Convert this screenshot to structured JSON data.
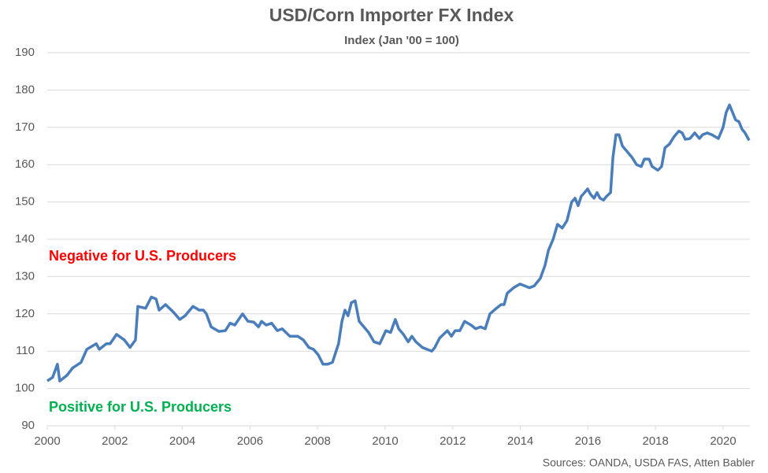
{
  "chart_data": {
    "type": "line",
    "title": "USD/Corn Importer FX Index",
    "subtitle": "Index (Jan '00 = 100)",
    "annotations": [
      {
        "text": "Negative for U.S. Producers",
        "color": "#ff0000"
      },
      {
        "text": "Positive for U.S. Producers",
        "color": "#00b050"
      }
    ],
    "source": "Sources: OANDA, USDA FAS, Atten Babler",
    "xlim": [
      2000,
      2020.8
    ],
    "xticks": [
      2000,
      2002,
      2004,
      2006,
      2008,
      2010,
      2012,
      2014,
      2016,
      2018,
      2020
    ],
    "ylim": [
      90,
      190
    ],
    "yticks": [
      90,
      100,
      110,
      120,
      130,
      140,
      150,
      160,
      170,
      180,
      190
    ],
    "grid": true,
    "x": [
      2000.0,
      2000.16,
      2000.3,
      2000.37,
      2000.58,
      2000.75,
      2001.0,
      2001.17,
      2001.45,
      2001.54,
      2001.75,
      2001.86,
      2002.05,
      2002.28,
      2002.45,
      2002.61,
      2002.68,
      2002.91,
      2003.08,
      2003.22,
      2003.31,
      2003.5,
      2003.73,
      2003.92,
      2004.08,
      2004.31,
      2004.5,
      2004.62,
      2004.71,
      2004.85,
      2005.08,
      2005.27,
      2005.41,
      2005.55,
      2005.78,
      2005.94,
      2006.11,
      2006.25,
      2006.34,
      2006.48,
      2006.64,
      2006.81,
      2006.95,
      2007.18,
      2007.41,
      2007.58,
      2007.74,
      2007.88,
      2008.02,
      2008.16,
      2008.3,
      2008.44,
      2008.62,
      2008.72,
      2008.81,
      2008.9,
      2009.0,
      2009.11,
      2009.23,
      2009.37,
      2009.51,
      2009.67,
      2009.84,
      2010.02,
      2010.16,
      2010.3,
      2010.4,
      2010.54,
      2010.68,
      2010.79,
      2010.91,
      2011.1,
      2011.24,
      2011.38,
      2011.47,
      2011.61,
      2011.84,
      2011.96,
      2012.07,
      2012.21,
      2012.35,
      2012.54,
      2012.68,
      2012.82,
      2012.96,
      2013.1,
      2013.29,
      2013.43,
      2013.52,
      2013.61,
      2013.8,
      2013.99,
      2014.13,
      2014.27,
      2014.41,
      2014.59,
      2014.73,
      2014.83,
      2014.97,
      2015.1,
      2015.24,
      2015.38,
      2015.52,
      2015.62,
      2015.71,
      2015.8,
      2015.9,
      2015.99,
      2016.08,
      2016.18,
      2016.27,
      2016.36,
      2016.46,
      2016.55,
      2016.67,
      2016.74,
      2016.83,
      2016.92,
      2017.02,
      2017.16,
      2017.3,
      2017.44,
      2017.58,
      2017.67,
      2017.81,
      2017.9,
      2018.07,
      2018.18,
      2018.28,
      2018.41,
      2018.55,
      2018.69,
      2018.79,
      2018.88,
      2019.02,
      2019.16,
      2019.3,
      2019.39,
      2019.53,
      2019.67,
      2019.86,
      2020.0,
      2020.09,
      2020.19,
      2020.28,
      2020.37,
      2020.47,
      2020.56,
      2020.65,
      2020.77
    ],
    "series": [
      {
        "name": "USD/Corn Importer FX Index",
        "color": "#4a7ebb",
        "values": [
          102,
          103,
          106.5,
          102,
          103.5,
          105.5,
          107,
          110.5,
          112,
          110.5,
          112,
          112,
          114.5,
          113,
          111,
          113,
          122,
          121.5,
          124.5,
          124,
          121,
          122.5,
          120.5,
          118.5,
          119.5,
          122,
          121,
          121,
          120,
          116.5,
          115.3,
          115.5,
          117.5,
          117,
          120,
          118,
          117.8,
          116.5,
          118,
          117,
          117.5,
          115.5,
          116,
          114,
          114,
          113,
          111,
          110.5,
          109,
          106.5,
          106.5,
          107,
          112,
          118,
          121,
          119.5,
          123,
          123.5,
          118,
          116.5,
          115,
          112.5,
          112,
          115.5,
          115,
          118.5,
          116,
          114.5,
          112.5,
          114,
          112.5,
          111,
          110.5,
          110,
          111,
          113.5,
          115.5,
          114,
          115.5,
          115.5,
          118,
          117,
          116,
          116.5,
          116,
          120,
          121.5,
          122.5,
          122.5,
          125.5,
          127,
          128,
          127.5,
          127,
          127.5,
          129.5,
          133,
          137,
          140,
          144,
          143,
          145,
          150,
          151,
          149,
          151.5,
          152.5,
          153.5,
          152,
          151,
          152.5,
          151,
          150.5,
          151.5,
          152.5,
          162,
          168,
          168,
          165,
          163.5,
          162,
          160,
          159.5,
          161.5,
          161.5,
          159.5,
          158.5,
          159.5,
          164.5,
          165.5,
          167.5,
          169,
          168.5,
          166.8,
          167,
          168.5,
          167,
          168,
          168.5,
          168,
          167,
          170,
          174,
          176,
          174,
          172,
          171.5,
          169.5,
          168.5,
          166.5
        ]
      }
    ]
  }
}
